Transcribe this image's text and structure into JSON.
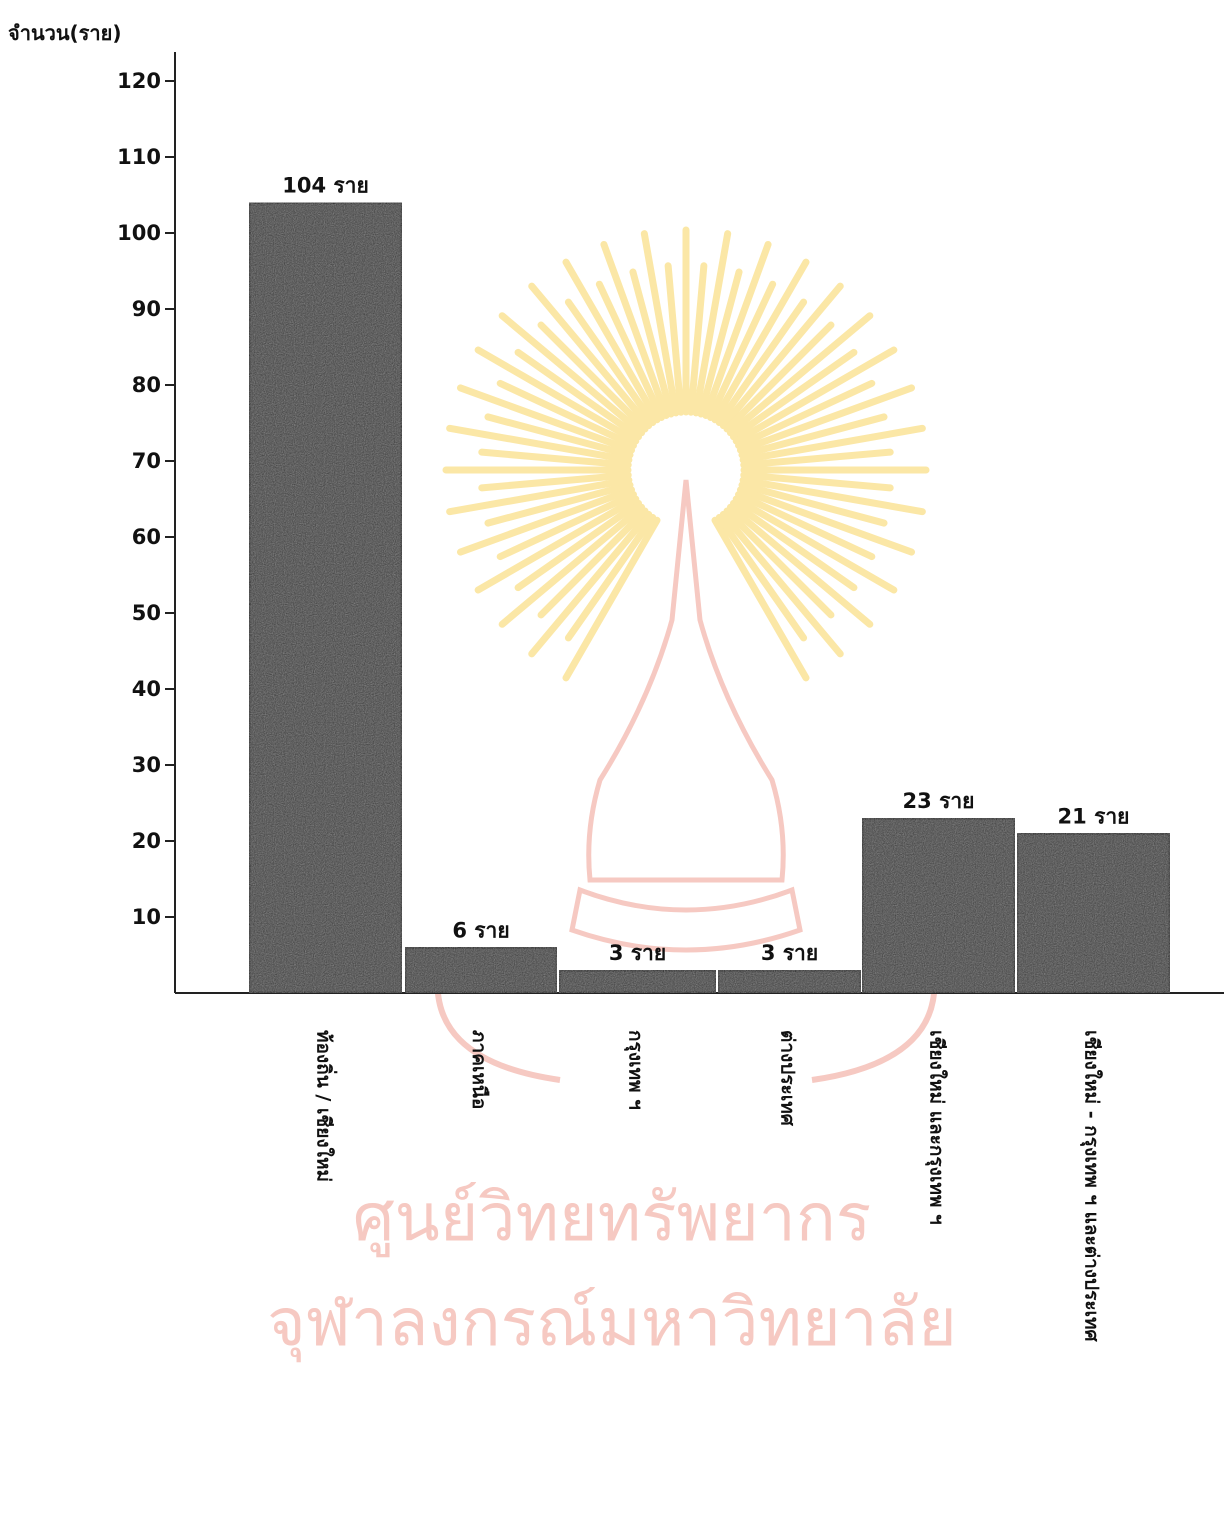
{
  "chart_data": {
    "type": "bar",
    "title": "",
    "xlabel": "",
    "ylabel": "จำนวน(ราย)",
    "ylim": [
      0,
      120
    ],
    "yticks": [
      10,
      20,
      30,
      40,
      50,
      60,
      70,
      80,
      90,
      100,
      110,
      120
    ],
    "categories": [
      "ท้องถิ่น / เชียงใหม่",
      "ภาคเหนือ",
      "กรุงเทพ ฯ",
      "ต่างประเทศ",
      "เชียงใหม่ และกรุงเทพ ฯ",
      "เชียงใหม่ - กรุงเทพ ฯ และต่างประเทศ"
    ],
    "values": [
      104,
      6,
      3,
      3,
      23,
      21
    ],
    "data_labels": [
      "104 ราย",
      "6 ราย",
      "3 ราย",
      "3 ราย",
      "23 ราย",
      "21 ราย"
    ],
    "bar_color": "#3a3a3a",
    "grid": false
  },
  "watermark": {
    "line1": "ศูนย์วิทยทรัพยากร",
    "line2": "จุฬาลงกรณ์มหาวิทยาลัย",
    "color": "#f6c9c2"
  }
}
